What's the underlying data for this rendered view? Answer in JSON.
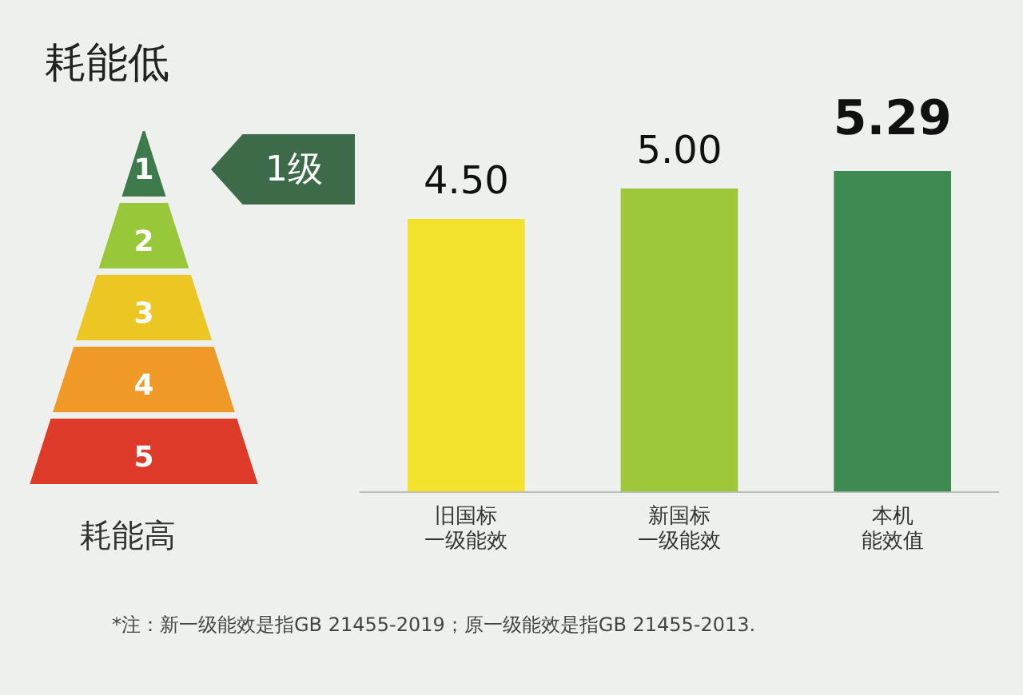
{
  "chart_data": {
    "type": "bar",
    "categories": [
      "旧国标一级能效",
      "新国标一级能效",
      "本机能效值"
    ],
    "values": [
      4.5,
      5.0,
      5.29
    ],
    "colors": [
      "#f3e22c",
      "#9dc63b",
      "#3f8a52"
    ],
    "data_labels": true,
    "value_labels": [
      "4.50",
      "5.00",
      "5.29"
    ],
    "legend": false,
    "grid": false,
    "annotations": [
      "耗能低",
      "1级",
      "1",
      "2",
      "3",
      "4",
      "5",
      "耗能高",
      "*注：新一级能效是指GB 21455-2019；原一级能效是指GB 21455-2013."
    ]
  }
}
